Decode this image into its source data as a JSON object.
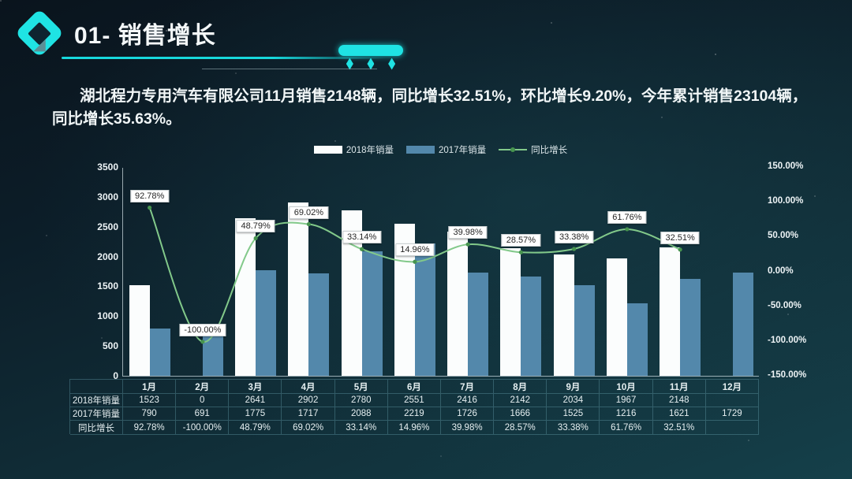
{
  "header": {
    "title": "01- 销售增长"
  },
  "summary": "湖北程力专用汽车有限公司11月销售2148辆，同比增长32.51%，环比增长9.20%，今年累计销售23104辆，同比增长35.63%。",
  "colors": {
    "accent_cyan": "#1fe3e4",
    "bar_2018": "#fbfdfd",
    "bar_2017": "#5388ab",
    "line_green": "#82c98a",
    "marker_green": "#47944f",
    "label_box_bg": "#ffffff",
    "label_box_text": "#262626"
  },
  "chart_data": {
    "type": "bar+line",
    "title": "",
    "categories": [
      "1月",
      "2月",
      "3月",
      "4月",
      "5月",
      "6月",
      "7月",
      "8月",
      "9月",
      "10月",
      "11月",
      "12月"
    ],
    "series": [
      {
        "name": "2018年销量",
        "type": "bar",
        "color": "#fbfdfd",
        "values": [
          1523,
          0,
          2641,
          2902,
          2780,
          2551,
          2416,
          2142,
          2034,
          1967,
          2148,
          null
        ]
      },
      {
        "name": "2017年销量",
        "type": "bar",
        "color": "#5388ab",
        "values": [
          790,
          691,
          1775,
          1717,
          2088,
          2219,
          1726,
          1666,
          1525,
          1216,
          1621,
          1729
        ]
      },
      {
        "name": "同比增长",
        "type": "line",
        "color": "#82c98a",
        "marker_color": "#47944f",
        "values": [
          92.78,
          -100.0,
          48.79,
          69.02,
          33.14,
          14.96,
          39.98,
          28.57,
          33.38,
          61.76,
          32.51,
          null
        ],
        "labels": [
          "92.78%",
          "-100.00%",
          "48.79%",
          "69.02%",
          "33.14%",
          "14.96%",
          "39.98%",
          "28.57%",
          "33.38%",
          "61.76%",
          "32.51%",
          ""
        ]
      }
    ],
    "left_axis": {
      "min": 0,
      "max": 3500,
      "step": 500,
      "ticks": [
        "3500",
        "3000",
        "2500",
        "2000",
        "1500",
        "1000",
        "500",
        "0"
      ]
    },
    "right_axis": {
      "min": -150,
      "max": 150,
      "step": 50,
      "ticks": [
        "150.00%",
        "100.00%",
        "50.00%",
        "0.00%",
        "-50.00%",
        "-100.00%",
        "-150.00%"
      ]
    },
    "legend_position": "top",
    "grid": false
  },
  "table": {
    "corner": "",
    "columns": [
      "1月",
      "2月",
      "3月",
      "4月",
      "5月",
      "6月",
      "7月",
      "8月",
      "9月",
      "10月",
      "11月",
      "12月"
    ],
    "row_headers": [
      "2018年销量",
      "2017年销量",
      "同比增长"
    ],
    "rows": [
      [
        "1523",
        "0",
        "2641",
        "2902",
        "2780",
        "2551",
        "2416",
        "2142",
        "2034",
        "1967",
        "2148",
        ""
      ],
      [
        "790",
        "691",
        "1775",
        "1717",
        "2088",
        "2219",
        "1726",
        "1666",
        "1525",
        "1216",
        "1621",
        "1729"
      ],
      [
        "92.78%",
        "-100.00%",
        "48.79%",
        "69.02%",
        "33.14%",
        "14.96%",
        "39.98%",
        "28.57%",
        "33.38%",
        "61.76%",
        "32.51%",
        ""
      ]
    ]
  }
}
